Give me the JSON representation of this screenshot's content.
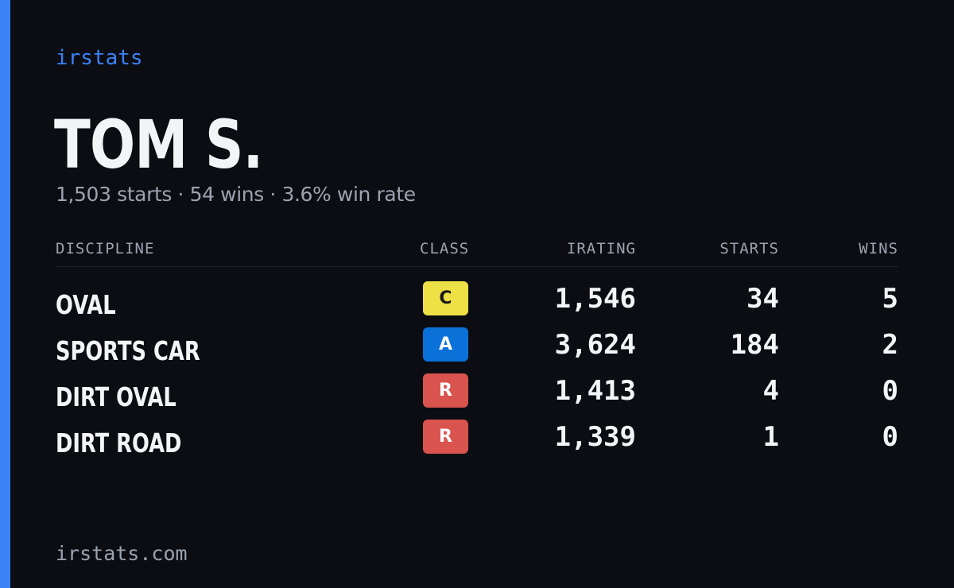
{
  "brand": "irstats",
  "player": {
    "name": "TOM S.",
    "summary": "1,503 starts · 54 wins · 3.6% win rate"
  },
  "table": {
    "headers": {
      "discipline": "DISCIPLINE",
      "class": "CLASS",
      "irating": "IRATING",
      "starts": "STARTS",
      "wins": "WINS"
    },
    "rows": [
      {
        "discipline": "OVAL",
        "class": "C",
        "class_color": "#eee146",
        "class_text_color": "#1a1a1a",
        "irating": "1,546",
        "starts": "34",
        "wins": "5"
      },
      {
        "discipline": "SPORTS CAR",
        "class": "A",
        "class_color": "#0a71d8",
        "class_text_color": "#ffffff",
        "irating": "3,624",
        "starts": "184",
        "wins": "2"
      },
      {
        "discipline": "DIRT OVAL",
        "class": "R",
        "class_color": "#d9534f",
        "class_text_color": "#ffffff",
        "irating": "1,413",
        "starts": "4",
        "wins": "0"
      },
      {
        "discipline": "DIRT ROAD",
        "class": "R",
        "class_color": "#d9534f",
        "class_text_color": "#ffffff",
        "irating": "1,339",
        "starts": "1",
        "wins": "0"
      }
    ]
  },
  "footer": "irstats.com",
  "colors": {
    "accent": "#3b82f6",
    "background": "#0b0d13",
    "muted_text": "#9ca3af"
  }
}
